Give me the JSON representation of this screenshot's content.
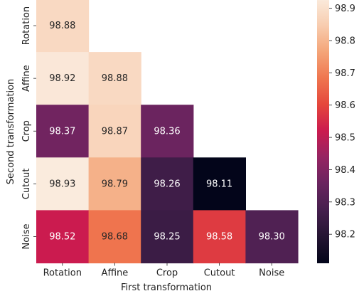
{
  "chart_data": {
    "type": "heatmap",
    "xlabel": "First transformation",
    "ylabel": "Second transformation",
    "x_categories": [
      "Rotation",
      "Affine",
      "Crop",
      "Cutout",
      "Noise"
    ],
    "y_categories": [
      "Rotation",
      "Affine",
      "Crop",
      "Cutout",
      "Noise"
    ],
    "values": [
      [
        98.88,
        null,
        null,
        null,
        null
      ],
      [
        98.92,
        98.88,
        null,
        null,
        null
      ],
      [
        98.37,
        98.87,
        98.36,
        null,
        null
      ],
      [
        98.93,
        98.79,
        98.26,
        98.11,
        null
      ],
      [
        98.52,
        98.68,
        98.25,
        98.58,
        98.3
      ]
    ],
    "value_labels": [
      [
        "98.88",
        null,
        null,
        null,
        null
      ],
      [
        "98.92",
        "98.88",
        null,
        null,
        null
      ],
      [
        "98.37",
        "98.87",
        "98.36",
        null,
        null
      ],
      [
        "98.93",
        "98.79",
        "98.26",
        "98.11",
        null
      ],
      [
        "98.52",
        "98.68",
        "98.25",
        "98.58",
        "98.30"
      ]
    ],
    "colorbar": {
      "vmin": 98.11,
      "vmax": 98.93,
      "ticks": [
        98.2,
        98.3,
        98.4,
        98.5,
        98.6,
        98.7,
        98.8,
        98.9
      ],
      "tick_labels": [
        "98.2",
        "98.3",
        "98.4",
        "98.5",
        "98.6",
        "98.7",
        "98.8",
        "98.9"
      ],
      "colormap": "rocket"
    },
    "grid": false,
    "mask": "upper-triangle"
  }
}
